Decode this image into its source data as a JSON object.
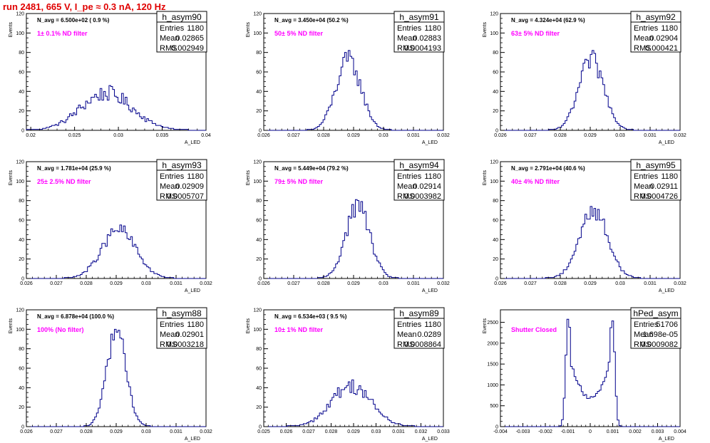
{
  "page": {
    "title": "run 2481,   665 V, I_pe ≈ 0.3 nA, 120 Hz"
  },
  "stat_labels": {
    "entries": "Entries",
    "mean": "Mean",
    "rms": "RMS"
  },
  "colors": {
    "title": "#e00000",
    "annotation": "#ff00ff",
    "histogram": "#00008b",
    "frame": "#000000"
  },
  "chart_data": [
    {
      "type": "histogram",
      "name": "h_asym90",
      "ylabel": "Events",
      "xlabel": "A_LED",
      "xlim": [
        0.0195,
        0.04
      ],
      "ylim": [
        0,
        120
      ],
      "xticks": [
        "0.02",
        "0.025",
        "0.03",
        "0.035",
        "0.04"
      ],
      "xtick_values": [
        0.02,
        0.025,
        0.03,
        0.035,
        0.04
      ],
      "yticks": [
        "0",
        "20",
        "40",
        "60",
        "80",
        "100",
        "120"
      ],
      "ytick_values": [
        0,
        20,
        40,
        60,
        80,
        100,
        120
      ],
      "stats": {
        "entries": "1180",
        "mean": "0.02865",
        "rms": "0.002949"
      },
      "annotation": "N_avg = 6.500e+02 ( 0.9 %)",
      "filter_label": "1± 0.1% ND filter",
      "distribution": {
        "mean": 0.02865,
        "rms": 0.002949,
        "peak": 38,
        "noise": 0.22
      }
    },
    {
      "type": "histogram",
      "name": "h_asym91",
      "ylabel": "Events",
      "xlabel": "A_LED",
      "xlim": [
        0.026,
        0.032
      ],
      "ylim": [
        0,
        120
      ],
      "xticks": [
        "0.026",
        "0.027",
        "0.028",
        "0.029",
        "0.03",
        "0.031",
        "0.032"
      ],
      "xtick_values": [
        0.026,
        0.027,
        0.028,
        0.029,
        0.03,
        0.031,
        0.032
      ],
      "yticks": [
        "0",
        "20",
        "40",
        "60",
        "80",
        "100",
        "120"
      ],
      "ytick_values": [
        0,
        20,
        40,
        60,
        80,
        100,
        120
      ],
      "stats": {
        "entries": "1180",
        "mean": "0.02883",
        "rms": "0.0004193"
      },
      "annotation": "N_avg = 3.450e+04 (50.2 %)",
      "filter_label": "50± 5% ND filter",
      "distribution": {
        "mean": 0.02883,
        "rms": 0.0004193,
        "peak": 72,
        "noise": 0.15
      }
    },
    {
      "type": "histogram",
      "name": "h_asym92",
      "ylabel": "Events",
      "xlabel": "A_LED",
      "xlim": [
        0.026,
        0.032
      ],
      "ylim": [
        0,
        120
      ],
      "xticks": [
        "0.026",
        "0.027",
        "0.028",
        "0.029",
        "0.03",
        "0.031",
        "0.032"
      ],
      "xtick_values": [
        0.026,
        0.027,
        0.028,
        0.029,
        0.03,
        0.031,
        0.032
      ],
      "yticks": [
        "0",
        "20",
        "40",
        "60",
        "80",
        "100",
        "120"
      ],
      "ytick_values": [
        0,
        20,
        40,
        60,
        80,
        100,
        120
      ],
      "stats": {
        "entries": "1180",
        "mean": "0.02904",
        "rms": "0.000421"
      },
      "annotation": "N_avg = 4.324e+04 (62.9 %)",
      "filter_label": "63± 5% ND filter",
      "distribution": {
        "mean": 0.02904,
        "rms": 0.000421,
        "peak": 72,
        "noise": 0.15
      }
    },
    {
      "type": "histogram",
      "name": "h_asym93",
      "ylabel": "Events",
      "xlabel": "A_LED",
      "xlim": [
        0.026,
        0.032
      ],
      "ylim": [
        0,
        120
      ],
      "xticks": [
        "0.026",
        "0.027",
        "0.028",
        "0.029",
        "0.03",
        "0.031",
        "0.032"
      ],
      "xtick_values": [
        0.026,
        0.027,
        0.028,
        0.029,
        0.03,
        0.031,
        0.032
      ],
      "yticks": [
        "0",
        "20",
        "40",
        "60",
        "80",
        "100",
        "120"
      ],
      "ytick_values": [
        0,
        20,
        40,
        60,
        80,
        100,
        120
      ],
      "stats": {
        "entries": "1180",
        "mean": "0.02909",
        "rms": "0.0005707"
      },
      "annotation": "N_avg = 1.781e+04 (25.9 %)",
      "filter_label": "25± 2.5% ND filter",
      "distribution": {
        "mean": 0.02909,
        "rms": 0.0005707,
        "peak": 50,
        "noise": 0.15
      }
    },
    {
      "type": "histogram",
      "name": "h_asym94",
      "ylabel": "Events",
      "xlabel": "A_LED",
      "xlim": [
        0.026,
        0.032
      ],
      "ylim": [
        0,
        120
      ],
      "xticks": [
        "0.026",
        "0.027",
        "0.028",
        "0.029",
        "0.03",
        "0.031",
        "0.032"
      ],
      "xtick_values": [
        0.026,
        0.027,
        0.028,
        0.029,
        0.03,
        0.031,
        0.032
      ],
      "yticks": [
        "0",
        "20",
        "40",
        "60",
        "80",
        "100",
        "120"
      ],
      "ytick_values": [
        0,
        20,
        40,
        60,
        80,
        100,
        120
      ],
      "stats": {
        "entries": "1180",
        "mean": "0.02914",
        "rms": "0.0003982"
      },
      "annotation": "N_avg = 5.449e+04 (79.2 %)",
      "filter_label": "79± 5% ND filter",
      "distribution": {
        "mean": 0.02914,
        "rms": 0.0003982,
        "peak": 75,
        "noise": 0.15
      }
    },
    {
      "type": "histogram",
      "name": "h_asym95",
      "ylabel": "Events",
      "xlabel": "A_LED",
      "xlim": [
        0.026,
        0.032
      ],
      "ylim": [
        0,
        120
      ],
      "xticks": [
        "0.026",
        "0.027",
        "0.028",
        "0.029",
        "0.03",
        "0.031",
        "0.032"
      ],
      "xtick_values": [
        0.026,
        0.027,
        0.028,
        0.029,
        0.03,
        0.031,
        0.032
      ],
      "yticks": [
        "0",
        "20",
        "40",
        "60",
        "80",
        "100",
        "120"
      ],
      "ytick_values": [
        0,
        20,
        40,
        60,
        80,
        100,
        120
      ],
      "stats": {
        "entries": "1180",
        "mean": "0.02911",
        "rms": "0.0004726"
      },
      "annotation": "N_avg = 2.791e+04 (40.6 %)",
      "filter_label": "40± 4% ND filter",
      "distribution": {
        "mean": 0.02911,
        "rms": 0.0004726,
        "peak": 70,
        "noise": 0.15
      }
    },
    {
      "type": "histogram",
      "name": "h_asym88",
      "ylabel": "Events",
      "xlabel": "A_LED",
      "xlim": [
        0.026,
        0.032
      ],
      "ylim": [
        0,
        120
      ],
      "xticks": [
        "0.026",
        "0.027",
        "0.028",
        "0.029",
        "0.03",
        "0.031",
        "0.032"
      ],
      "xtick_values": [
        0.026,
        0.027,
        0.028,
        0.029,
        0.03,
        0.031,
        0.032
      ],
      "yticks": [
        "0",
        "20",
        "40",
        "60",
        "80",
        "100",
        "120"
      ],
      "ytick_values": [
        0,
        20,
        40,
        60,
        80,
        100,
        120
      ],
      "stats": {
        "entries": "1180",
        "mean": "0.02901",
        "rms": "0.0003218"
      },
      "annotation": "N_avg = 6.878e+04 (100.0 %)",
      "filter_label": "100% (No filter)",
      "distribution": {
        "mean": 0.02901,
        "rms": 0.0003218,
        "peak": 100,
        "noise": 0.12
      }
    },
    {
      "type": "histogram",
      "name": "h_asym89",
      "ylabel": "Events",
      "xlabel": "A_LED",
      "xlim": [
        0.025,
        0.033
      ],
      "ylim": [
        0,
        120
      ],
      "xticks": [
        "0.025",
        "0.026",
        "0.027",
        "0.028",
        "0.029",
        "0.03",
        "0.031",
        "0.032",
        "0.033"
      ],
      "xtick_values": [
        0.025,
        0.026,
        0.027,
        0.028,
        0.029,
        0.03,
        0.031,
        0.032,
        0.033
      ],
      "yticks": [
        "0",
        "20",
        "40",
        "60",
        "80",
        "100",
        "120"
      ],
      "ytick_values": [
        0,
        20,
        40,
        60,
        80,
        100,
        120
      ],
      "stats": {
        "entries": "1180",
        "mean": "0.0289",
        "rms": "0.0008864"
      },
      "annotation": "N_avg = 6.534e+03 ( 9.5 %)",
      "filter_label": "10± 1% ND filter",
      "distribution": {
        "mean": 0.0289,
        "rms": 0.0008864,
        "peak": 42,
        "noise": 0.2
      }
    },
    {
      "type": "histogram",
      "name": "hPed_asym",
      "ylabel": "Events",
      "xlabel": "A_LED",
      "xlim": [
        -0.004,
        0.004
      ],
      "ylim": [
        0,
        2800
      ],
      "xticks": [
        "-0.004",
        "-0.003",
        "-0.002",
        "-0.001",
        "0",
        "0.001",
        "0.002",
        "0.003",
        "0.004"
      ],
      "xtick_values": [
        -0.004,
        -0.003,
        -0.002,
        -0.001,
        0,
        0.001,
        0.002,
        0.003,
        0.004
      ],
      "yticks": [
        "0",
        "500",
        "1000",
        "1500",
        "2000",
        "2500"
      ],
      "ytick_values": [
        0,
        500,
        1000,
        1500,
        2000,
        2500
      ],
      "stats": {
        "entries": "51706",
        "mean": "1.698e-05",
        "rms": "0.0009082"
      },
      "annotation": "",
      "filter_label": "Shutter Closed",
      "distribution": {
        "shape": "double-peak",
        "peaks": [
          -0.00098,
          0.00098
        ],
        "peak": 2650,
        "valley": 700,
        "noise": 0.06
      }
    }
  ]
}
